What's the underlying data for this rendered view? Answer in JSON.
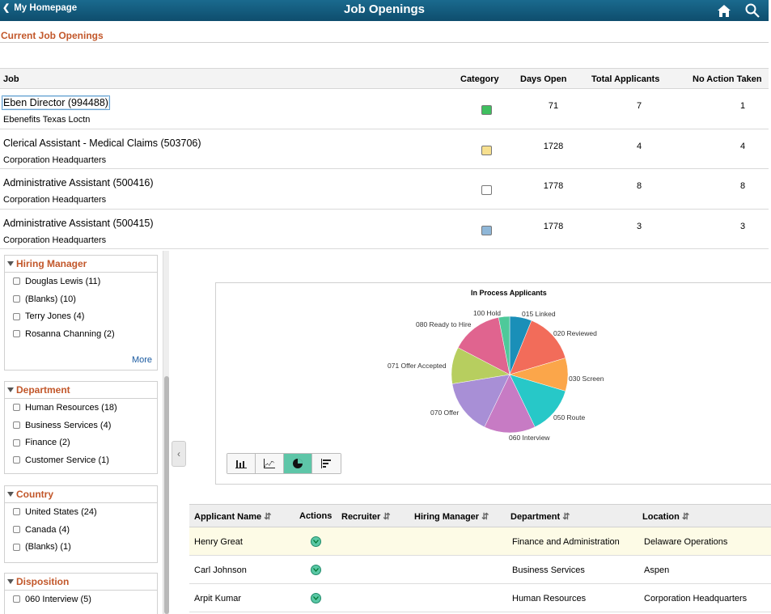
{
  "header": {
    "back_label": "My Homepage",
    "title": "Job Openings",
    "home_icon": "home-icon",
    "search_icon": "search-icon"
  },
  "section_title": "Current Job Openings",
  "jobs": {
    "columns": [
      "Job",
      "Category",
      "Days Open",
      "Total Applicants",
      "No Action Taken"
    ],
    "rows": [
      {
        "title": "Eben Director (994488)",
        "location": "Ebenefits Texas Loctn",
        "category_color": "#3fbf5f",
        "days_open": "71",
        "total": "7",
        "no_action": "1"
      },
      {
        "title": "Clerical Assistant - Medical Claims (503706)",
        "location": "Corporation Headquarters",
        "category_color": "#f7e08f",
        "days_open": "1728",
        "total": "4",
        "no_action": "4"
      },
      {
        "title": "Administrative Assistant (500416)",
        "location": "Corporation Headquarters",
        "category_color": "#ffffff",
        "days_open": "1778",
        "total": "8",
        "no_action": "8"
      },
      {
        "title": "Administrative Assistant (500415)",
        "location": "Corporation Headquarters",
        "category_color": "#8fb7d8",
        "days_open": "1778",
        "total": "3",
        "no_action": "3"
      }
    ]
  },
  "filters": {
    "hiring_manager": {
      "title": "Hiring Manager",
      "items": [
        "Douglas Lewis (11)",
        "(Blanks) (10)",
        "Terry Jones (4)",
        "Rosanna Channing (2)"
      ],
      "more": "More"
    },
    "department": {
      "title": "Department",
      "items": [
        "Human Resources (18)",
        "Business Services (4)",
        "Finance (2)",
        "Customer Service (1)"
      ]
    },
    "country": {
      "title": "Country",
      "items": [
        "United States (24)",
        "Canada (4)",
        "(Blanks) (1)"
      ]
    },
    "disposition": {
      "title": "Disposition",
      "items": [
        "060 Interview (5)"
      ]
    }
  },
  "chart_data": {
    "type": "pie",
    "title": "In Process Applicants",
    "labels": [
      "015 Linked",
      "020 Reviewed",
      "030 Screen",
      "050 Route",
      "060 Interview",
      "070 Offer",
      "071 Offer Accepted",
      "080 Ready to Hire",
      "100 Hold"
    ],
    "values": [
      6,
      14,
      9,
      13,
      14,
      15,
      10,
      14,
      3
    ],
    "colors": [
      "#1a8fb8",
      "#f26c5a",
      "#fba64a",
      "#27c8c8",
      "#c77bc4",
      "#a88fd6",
      "#b7ce5f",
      "#e0648f",
      "#4ec99a"
    ]
  },
  "chart_tools": [
    "bar-chart-icon",
    "line-chart-icon",
    "pie-chart-icon",
    "horizontal-bar-icon"
  ],
  "applicants": {
    "columns": [
      "Applicant Name",
      "Actions",
      "Recruiter",
      "Hiring Manager",
      "Department",
      "Location"
    ],
    "rows": [
      {
        "name": "Henry Great",
        "recruiter": "",
        "hiring_manager": "",
        "department": "Finance and Administration",
        "location": "Delaware Operations"
      },
      {
        "name": "Carl Johnson",
        "recruiter": "",
        "hiring_manager": "",
        "department": "Business Services",
        "location": "Aspen"
      },
      {
        "name": "Arpit Kumar",
        "recruiter": "",
        "hiring_manager": "",
        "department": "Human Resources",
        "location": "Corporation Headquarters"
      }
    ]
  }
}
